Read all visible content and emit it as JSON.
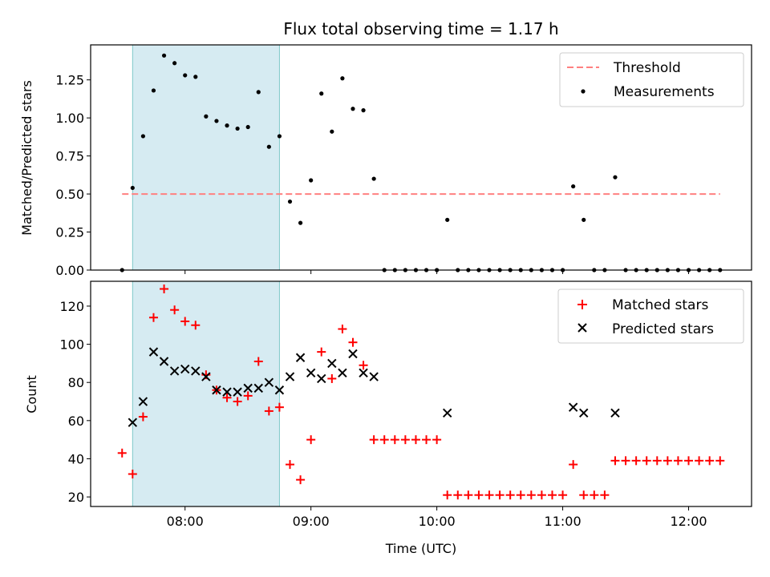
{
  "chart_data": [
    {
      "type": "scatter",
      "title": "Flux total observing time = 1.17 h",
      "xlabel": "",
      "ylabel": "Matched/Predicted stars",
      "ylim": [
        0,
        1.48
      ],
      "yticks": [
        "0.00",
        "0.25",
        "0.50",
        "0.75",
        "1.00",
        "1.25"
      ],
      "legend_position": "upper right",
      "shaded_interval": [
        "07:35",
        "08:45"
      ],
      "threshold": {
        "name": "Threshold",
        "value": 0.5,
        "x_start": "07:30",
        "x_end": "12:15",
        "color": "#ff8080",
        "style": "dashed"
      },
      "series": [
        {
          "name": "Measurements",
          "color": "#000000",
          "x": [
            "07:30",
            "07:35",
            "07:40",
            "07:45",
            "07:50",
            "07:55",
            "08:00",
            "08:05",
            "08:10",
            "08:15",
            "08:20",
            "08:25",
            "08:30",
            "08:35",
            "08:40",
            "08:45",
            "08:50",
            "08:55",
            "09:00",
            "09:05",
            "09:10",
            "09:15",
            "09:20",
            "09:25",
            "09:30",
            "09:35",
            "09:40",
            "09:45",
            "09:50",
            "09:55",
            "10:00",
            "10:05",
            "10:10",
            "10:15",
            "10:20",
            "10:25",
            "10:30",
            "10:35",
            "10:40",
            "10:45",
            "10:50",
            "10:55",
            "11:00",
            "11:05",
            "11:10",
            "11:15",
            "11:20",
            "11:25",
            "11:30",
            "11:35",
            "11:40",
            "11:45",
            "11:50",
            "11:55",
            "12:00",
            "12:05",
            "12:10",
            "12:15"
          ],
          "y": [
            0,
            0.54,
            0.88,
            1.18,
            1.41,
            1.36,
            1.28,
            1.27,
            1.01,
            0.98,
            0.95,
            0.93,
            0.94,
            1.17,
            0.81,
            0.88,
            0.45,
            0.31,
            0.59,
            1.16,
            0.91,
            1.26,
            1.06,
            1.05,
            0.6,
            0,
            0,
            0,
            0,
            0,
            0,
            0.33,
            0,
            0,
            0,
            0,
            0,
            0,
            0,
            0,
            0,
            0,
            0,
            0.55,
            0.33,
            0,
            0,
            0.61,
            0,
            0,
            0,
            0,
            0,
            0,
            0,
            0,
            0,
            0
          ]
        }
      ]
    },
    {
      "type": "scatter",
      "title": "",
      "xlabel": "Time (UTC)",
      "ylabel": "Count",
      "ylim": [
        15,
        133
      ],
      "yticks": [
        "20",
        "40",
        "60",
        "80",
        "100",
        "120"
      ],
      "xticks": [
        "08:00",
        "09:00",
        "10:00",
        "11:00",
        "12:00"
      ],
      "xlim": [
        "07:15",
        "12:30"
      ],
      "legend_position": "upper right",
      "shaded_interval": [
        "07:35",
        "08:45"
      ],
      "series": [
        {
          "name": "Matched stars",
          "marker": "plus",
          "color": "#ff0000",
          "x": [
            "07:30",
            "07:35",
            "07:40",
            "07:45",
            "07:50",
            "07:55",
            "08:00",
            "08:05",
            "08:10",
            "08:15",
            "08:20",
            "08:25",
            "08:30",
            "08:35",
            "08:40",
            "08:45",
            "08:50",
            "08:55",
            "09:00",
            "09:05",
            "09:10",
            "09:15",
            "09:20",
            "09:25",
            "09:30",
            "09:35",
            "09:40",
            "09:45",
            "09:50",
            "09:55",
            "10:00",
            "10:05",
            "10:10",
            "10:15",
            "10:20",
            "10:25",
            "10:30",
            "10:35",
            "10:40",
            "10:45",
            "10:50",
            "10:55",
            "11:00",
            "11:05",
            "11:10",
            "11:15",
            "11:20",
            "11:25",
            "11:30",
            "11:35",
            "11:40",
            "11:45",
            "11:50",
            "11:55",
            "12:00",
            "12:05",
            "12:10",
            "12:15"
          ],
          "y": [
            43,
            32,
            62,
            114,
            129,
            118,
            112,
            110,
            84,
            76,
            72,
            70,
            73,
            91,
            65,
            67,
            37,
            29,
            50,
            96,
            82,
            108,
            101,
            89,
            50,
            50,
            50,
            50,
            50,
            50,
            50,
            21,
            21,
            21,
            21,
            21,
            21,
            21,
            21,
            21,
            21,
            21,
            21,
            37,
            21,
            21,
            21,
            39,
            39,
            39,
            39,
            39,
            39,
            39,
            39,
            39,
            39,
            39
          ]
        },
        {
          "name": "Predicted stars",
          "marker": "x",
          "color": "#000000",
          "x": [
            "07:35",
            "07:40",
            "07:45",
            "07:50",
            "07:55",
            "08:00",
            "08:05",
            "08:10",
            "08:15",
            "08:20",
            "08:25",
            "08:30",
            "08:35",
            "08:40",
            "08:45",
            "08:50",
            "08:55",
            "09:00",
            "09:05",
            "09:10",
            "09:15",
            "09:20",
            "09:25",
            "09:30",
            "10:05",
            "11:05",
            "11:10",
            "11:25"
          ],
          "y": [
            59,
            70,
            96,
            91,
            86,
            87,
            86,
            83,
            76,
            75,
            75,
            77,
            77,
            80,
            76,
            83,
            93,
            85,
            82,
            90,
            85,
            95,
            85,
            83,
            64,
            67,
            64,
            64
          ]
        }
      ]
    }
  ]
}
